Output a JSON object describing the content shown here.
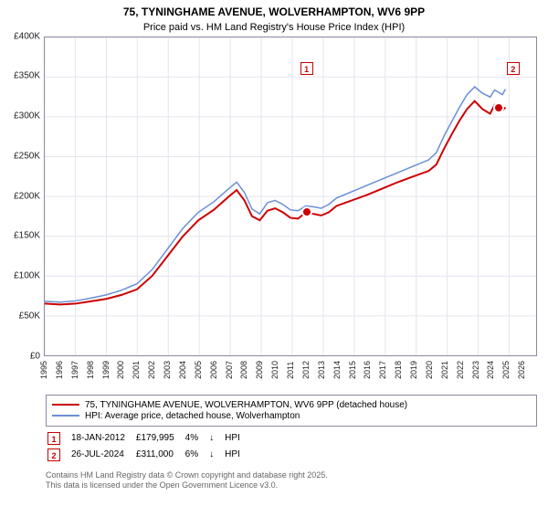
{
  "title_line1": "75, TYNINGHAME AVENUE, WOLVERHAMPTON, WV6 9PP",
  "title_line2": "Price paid vs. HM Land Registry's House Price Index (HPI)",
  "y": {
    "min": 0,
    "max": 400000,
    "ticks": [
      "£0",
      "£50K",
      "£100K",
      "£150K",
      "£200K",
      "£250K",
      "£300K",
      "£350K",
      "£400K"
    ]
  },
  "x": {
    "min": 1995,
    "max": 2027,
    "ticks": [
      "1995",
      "1996",
      "1997",
      "1998",
      "1999",
      "2000",
      "2001",
      "2002",
      "2003",
      "2004",
      "2005",
      "2006",
      "2007",
      "2008",
      "2009",
      "2010",
      "2011",
      "2012",
      "2013",
      "2014",
      "2015",
      "2016",
      "2017",
      "2018",
      "2019",
      "2020",
      "2021",
      "2022",
      "2023",
      "2024",
      "2025",
      "2026"
    ]
  },
  "grid_color": "#e4e4ee",
  "border_color": "#8a8aa0",
  "series": {
    "subject": {
      "label": "75, TYNINGHAME AVENUE, WOLVERHAMPTON, WV6 9PP (detached house)",
      "color": "#cc0000",
      "width": 2,
      "data": [
        [
          1995,
          65000
        ],
        [
          1996,
          64000
        ],
        [
          1997,
          65000
        ],
        [
          1998,
          68000
        ],
        [
          1999,
          71000
        ],
        [
          2000,
          76000
        ],
        [
          2001,
          83000
        ],
        [
          2002,
          100000
        ],
        [
          2003,
          125000
        ],
        [
          2004,
          150000
        ],
        [
          2005,
          170000
        ],
        [
          2006,
          183000
        ],
        [
          2007,
          200000
        ],
        [
          2007.5,
          208000
        ],
        [
          2008,
          195000
        ],
        [
          2008.5,
          175000
        ],
        [
          2009,
          170000
        ],
        [
          2009.5,
          182000
        ],
        [
          2010,
          185000
        ],
        [
          2010.5,
          180000
        ],
        [
          2011,
          173000
        ],
        [
          2011.5,
          172000
        ],
        [
          2012,
          179995
        ],
        [
          2012.5,
          178000
        ],
        [
          2013,
          176000
        ],
        [
          2013.5,
          180000
        ],
        [
          2014,
          188000
        ],
        [
          2015,
          195000
        ],
        [
          2016,
          202000
        ],
        [
          2017,
          210000
        ],
        [
          2018,
          218000
        ],
        [
          2019,
          225000
        ],
        [
          2020,
          232000
        ],
        [
          2020.5,
          240000
        ],
        [
          2021,
          260000
        ],
        [
          2021.5,
          278000
        ],
        [
          2022,
          295000
        ],
        [
          2022.5,
          310000
        ],
        [
          2023,
          320000
        ],
        [
          2023.5,
          310000
        ],
        [
          2024,
          304000
        ],
        [
          2024.3,
          315000
        ],
        [
          2024.57,
          311000
        ],
        [
          2024.8,
          308000
        ],
        [
          2025,
          312000
        ]
      ]
    },
    "hpi": {
      "label": "HPI: Average price, detached house, Wolverhampton",
      "color": "#6a8fd4",
      "width": 1.5,
      "data": [
        [
          1995,
          68000
        ],
        [
          1996,
          67000
        ],
        [
          1997,
          68500
        ],
        [
          1998,
          72000
        ],
        [
          1999,
          76000
        ],
        [
          2000,
          82000
        ],
        [
          2001,
          90000
        ],
        [
          2002,
          108000
        ],
        [
          2003,
          134000
        ],
        [
          2004,
          160000
        ],
        [
          2005,
          180000
        ],
        [
          2006,
          193000
        ],
        [
          2007,
          210000
        ],
        [
          2007.5,
          218000
        ],
        [
          2008,
          205000
        ],
        [
          2008.5,
          184000
        ],
        [
          2009,
          178000
        ],
        [
          2009.5,
          192000
        ],
        [
          2010,
          195000
        ],
        [
          2010.5,
          190000
        ],
        [
          2011,
          183000
        ],
        [
          2011.5,
          182000
        ],
        [
          2012,
          188000
        ],
        [
          2012.5,
          187000
        ],
        [
          2013,
          185000
        ],
        [
          2013.5,
          190000
        ],
        [
          2014,
          198000
        ],
        [
          2015,
          206000
        ],
        [
          2016,
          214000
        ],
        [
          2017,
          222000
        ],
        [
          2018,
          230000
        ],
        [
          2019,
          238000
        ],
        [
          2020,
          246000
        ],
        [
          2020.5,
          255000
        ],
        [
          2021,
          276000
        ],
        [
          2021.5,
          294000
        ],
        [
          2022,
          312000
        ],
        [
          2022.5,
          328000
        ],
        [
          2023,
          338000
        ],
        [
          2023.5,
          330000
        ],
        [
          2024,
          325000
        ],
        [
          2024.3,
          334000
        ],
        [
          2024.8,
          328000
        ],
        [
          2025,
          335000
        ]
      ]
    }
  },
  "markers": [
    {
      "n": "1",
      "box_color": "#cc0000",
      "x": 2012.05,
      "y": 360000,
      "dot_x": 2012.05,
      "dot_y": 179995
    },
    {
      "n": "2",
      "box_color": "#cc0000",
      "x": 2025.5,
      "y": 360000,
      "dot_x": 2024.57,
      "dot_y": 311000
    }
  ],
  "legend": [
    {
      "color": "#cc0000",
      "label_key": "series.subject.label"
    },
    {
      "color": "#6a8fd4",
      "label_key": "series.hpi.label"
    }
  ],
  "points": [
    {
      "n": "1",
      "color": "#cc0000",
      "date": "18-JAN-2012",
      "price": "£179,995",
      "pct": "4%",
      "arrow": "↓",
      "vs": "HPI"
    },
    {
      "n": "2",
      "color": "#cc0000",
      "date": "26-JUL-2024",
      "price": "£311,000",
      "pct": "6%",
      "arrow": "↓",
      "vs": "HPI"
    }
  ],
  "footer_line1": "Contains HM Land Registry data © Crown copyright and database right 2025.",
  "footer_line2": "This data is licensed under the Open Government Licence v3.0."
}
